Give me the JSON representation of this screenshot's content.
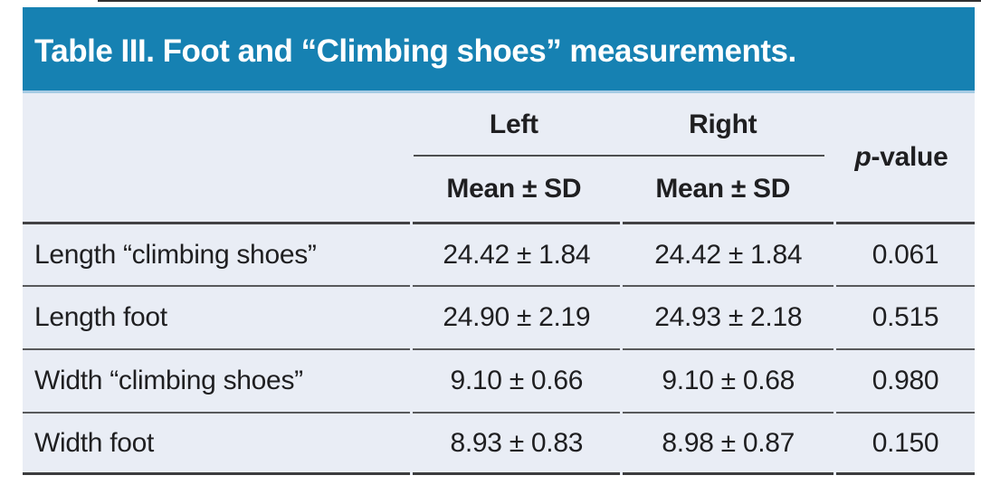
{
  "table": {
    "title": "Table III. Foot and “Climbing shoes” measurements.",
    "header": {
      "left_group": "Left",
      "right_group": "Right",
      "subheader_left": "Mean ± SD",
      "subheader_right": "Mean ± SD",
      "pvalue_italic": "p",
      "pvalue_rest": "-value"
    },
    "rows": [
      {
        "label": "Length “climbing shoes”",
        "left": "24.42 ± 1.84",
        "right": "24.42 ± 1.84",
        "p": "0.061"
      },
      {
        "label": "Length foot",
        "left": "24.90 ± 2.19",
        "right": "24.93 ± 2.18",
        "p": "0.515"
      },
      {
        "label": "Width “climbing shoes”",
        "left": "9.10 ± 0.66",
        "right": "9.10 ± 0.68",
        "p": "0.980"
      },
      {
        "label": "Width foot",
        "left": "8.93 ± 0.83",
        "right": "8.98 ± 0.87",
        "p": "0.150"
      }
    ],
    "colors": {
      "title_bar_blue": "#1681b2",
      "title_bar_edge": "#a6cbe4",
      "body_background": "#e9edf5",
      "text": "#1f1f21",
      "rule_dark": "#414143",
      "rule_separator": "#58595b"
    }
  }
}
